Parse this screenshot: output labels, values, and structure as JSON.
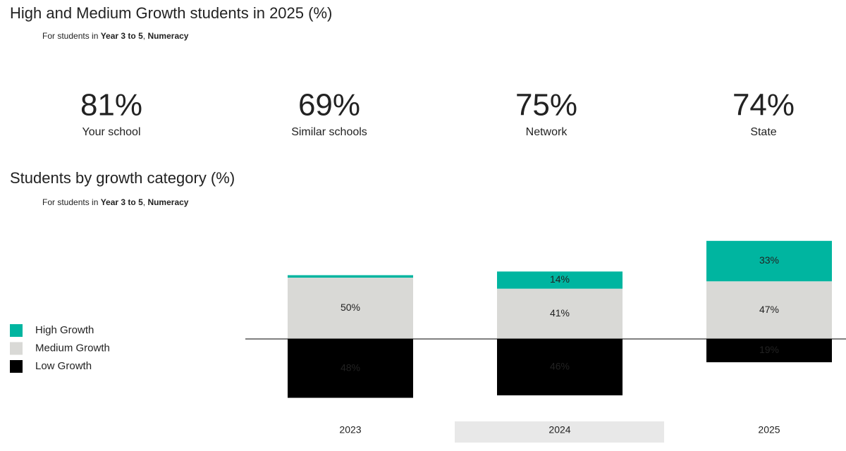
{
  "header": {
    "title": "High and Medium Growth students in 2025 (%)",
    "subtitle": [
      "For students in ",
      "Year 3 to 5",
      ", ",
      "Numeracy"
    ]
  },
  "kpis": [
    {
      "value": 81,
      "value_label": "81%",
      "label": "Your school",
      "color": "#f7941d"
    },
    {
      "value": 69,
      "value_label": "69%",
      "label": "Similar schools",
      "color": "#8e24aa"
    },
    {
      "value": 75,
      "value_label": "75%",
      "label": "Network",
      "color": "#5bbfe8"
    },
    {
      "value": 74,
      "value_label": "74%",
      "label": "State",
      "color": "#000000"
    }
  ],
  "chart_data": {
    "type": "bar",
    "title": "Students by growth category (%)",
    "subtitle": [
      "For students in ",
      "Year 3 to 5",
      ", ",
      "Numeracy"
    ],
    "categories": [
      "2023",
      "2024",
      "2025"
    ],
    "selected": "2024",
    "series": [
      {
        "name": "High Growth",
        "color": "#00b5a0",
        "values": [
          2,
          14,
          33
        ],
        "value_labels": [
          null,
          "14%",
          "33%"
        ]
      },
      {
        "name": "Medium Growth",
        "color": "#d9d9d6",
        "values": [
          50,
          41,
          47
        ],
        "value_labels": [
          "50%",
          "41%",
          "47%"
        ]
      },
      {
        "name": "Low Growth",
        "color": "#000000",
        "values": [
          48,
          46,
          19
        ],
        "value_labels": [
          "48%",
          "46%",
          "19%"
        ],
        "below_axis": true
      }
    ]
  }
}
